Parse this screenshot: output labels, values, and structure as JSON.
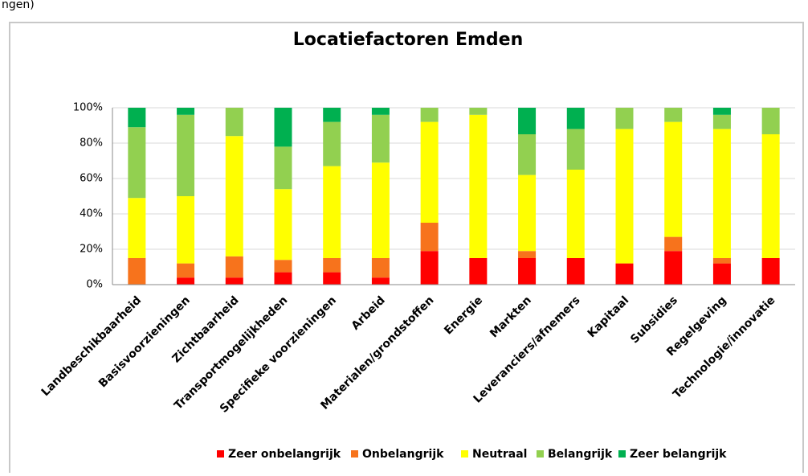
{
  "fragment": "ngen)",
  "chart_data": {
    "type": "bar",
    "stacked": true,
    "title": "Locatiefactoren Emden",
    "categories": [
      "Landbeschikbaarheid",
      "Basisvoorzieningen",
      "Zichtbaarheid",
      "Transportmogelijkheden",
      "Specifieke voorzieningen",
      "Arbeid",
      "Materialen/grondstoffen",
      "Energie",
      "Markten",
      "Leveranciers/afnemers",
      "Kapitaal",
      "Subsidies",
      "Regelgeving",
      "Technologie/innovatie"
    ],
    "series": [
      {
        "name": "Zeer onbelangrijk",
        "color": "#ff0000",
        "values": [
          0,
          4,
          4,
          7,
          7,
          4,
          19,
          15,
          15,
          15,
          12,
          19,
          12,
          15
        ]
      },
      {
        "name": "Onbelangrijk",
        "color": "#f7731c",
        "values": [
          15,
          8,
          12,
          7,
          8,
          11,
          16,
          0,
          4,
          0,
          0,
          8,
          3,
          0
        ]
      },
      {
        "name": "Neutraal",
        "color": "#ffff00",
        "values": [
          34,
          38,
          68,
          40,
          52,
          54,
          57,
          81,
          43,
          50,
          76,
          65,
          73,
          70
        ]
      },
      {
        "name": "Belangrijk",
        "color": "#92d050",
        "values": [
          40,
          46,
          16,
          24,
          25,
          27,
          8,
          4,
          23,
          23,
          12,
          8,
          8,
          15
        ]
      },
      {
        "name": "Zeer belangrijk",
        "color": "#00b050",
        "values": [
          11,
          4,
          0,
          22,
          8,
          4,
          0,
          0,
          15,
          12,
          0,
          0,
          4,
          0
        ]
      }
    ],
    "ylim": [
      0,
      100
    ],
    "yticks": [
      {
        "value": 0,
        "label": "0%"
      },
      {
        "value": 20,
        "label": "20%"
      },
      {
        "value": 40,
        "label": "40%"
      },
      {
        "value": 60,
        "label": "60%"
      },
      {
        "value": 80,
        "label": "80%"
      },
      {
        "value": 100,
        "label": "100%"
      }
    ],
    "grid": true,
    "legend": "bottom"
  }
}
